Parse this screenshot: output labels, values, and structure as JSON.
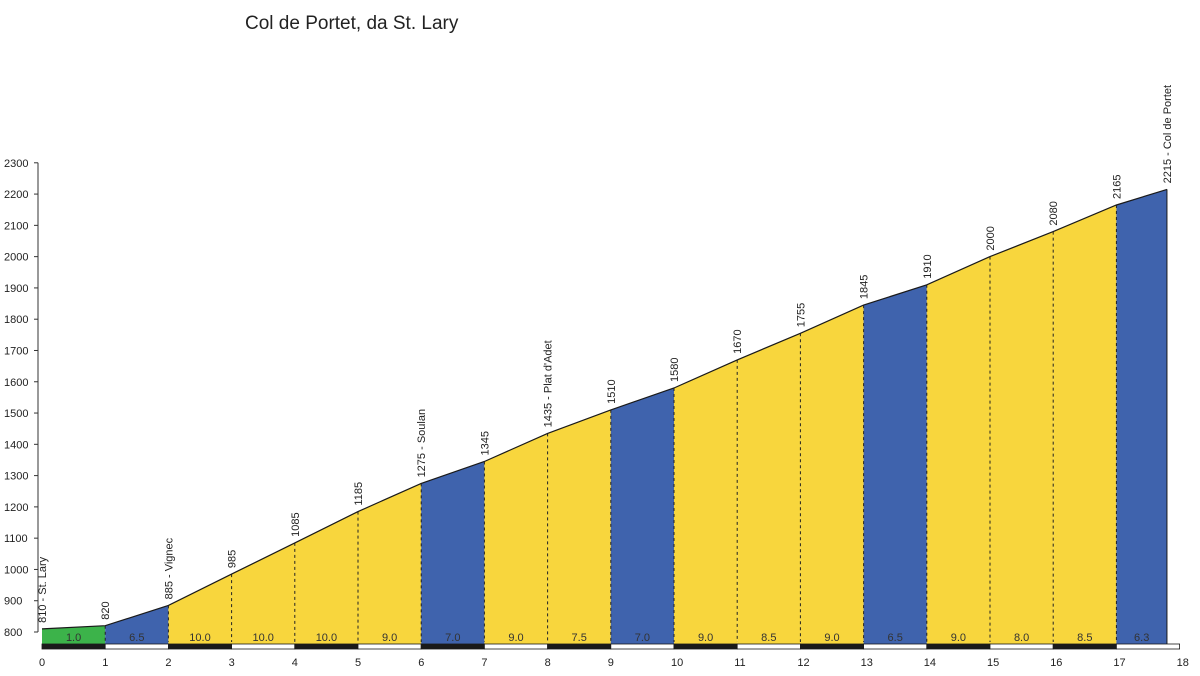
{
  "chart_data": {
    "type": "area",
    "title": "Col de Portet, da St. Lary",
    "xlim": [
      0,
      18
    ],
    "ylim": [
      800,
      2300
    ],
    "y_ticks": [
      "800",
      "900",
      "1000",
      "1100",
      "1200",
      "1300",
      "1400",
      "1500",
      "1600",
      "1700",
      "1800",
      "1900",
      "2000",
      "2100",
      "2200",
      "2300"
    ],
    "x_ticks": [
      "0",
      "1",
      "2",
      "3",
      "4",
      "5",
      "6",
      "7",
      "8",
      "9",
      "10",
      "11",
      "12",
      "13",
      "14",
      "15",
      "16",
      "17",
      "18"
    ],
    "profile": [
      {
        "x": 0,
        "y": 810
      },
      {
        "x": 1,
        "y": 820
      },
      {
        "x": 2,
        "y": 885
      },
      {
        "x": 3,
        "y": 985
      },
      {
        "x": 4,
        "y": 1085
      },
      {
        "x": 5,
        "y": 1185
      },
      {
        "x": 6,
        "y": 1275
      },
      {
        "x": 7,
        "y": 1345
      },
      {
        "x": 8,
        "y": 1435
      },
      {
        "x": 9,
        "y": 1510
      },
      {
        "x": 10,
        "y": 1580
      },
      {
        "x": 11,
        "y": 1670
      },
      {
        "x": 12,
        "y": 1755
      },
      {
        "x": 13,
        "y": 1845
      },
      {
        "x": 14,
        "y": 1910
      },
      {
        "x": 15,
        "y": 2000
      },
      {
        "x": 16,
        "y": 2080
      },
      {
        "x": 17,
        "y": 2165
      },
      {
        "x": 17.8,
        "y": 2215
      }
    ],
    "elevation_labels": [
      {
        "x": 0,
        "y": 810,
        "text": "810 - St. Lary"
      },
      {
        "x": 1,
        "y": 820,
        "text": "820"
      },
      {
        "x": 2,
        "y": 885,
        "text": "885 - Vignec"
      },
      {
        "x": 3,
        "y": 985,
        "text": "985"
      },
      {
        "x": 4,
        "y": 1085,
        "text": "1085"
      },
      {
        "x": 5,
        "y": 1185,
        "text": "1185"
      },
      {
        "x": 6,
        "y": 1275,
        "text": "1275 - Soulan"
      },
      {
        "x": 7,
        "y": 1345,
        "text": "1345"
      },
      {
        "x": 8,
        "y": 1435,
        "text": "1435 - Plat d'Adet"
      },
      {
        "x": 9,
        "y": 1510,
        "text": "1510"
      },
      {
        "x": 10,
        "y": 1580,
        "text": "1580"
      },
      {
        "x": 11,
        "y": 1670,
        "text": "1670"
      },
      {
        "x": 12,
        "y": 1755,
        "text": "1755"
      },
      {
        "x": 13,
        "y": 1845,
        "text": "1845"
      },
      {
        "x": 14,
        "y": 1910,
        "text": "1910"
      },
      {
        "x": 15,
        "y": 2000,
        "text": "2000"
      },
      {
        "x": 16,
        "y": 2080,
        "text": "2080"
      },
      {
        "x": 17,
        "y": 2165,
        "text": "2165"
      },
      {
        "x": 17.8,
        "y": 2215,
        "text": "2215 - Col de Portet"
      }
    ],
    "segments": [
      {
        "x0": 0,
        "x1": 1,
        "gradient": "1.0",
        "color": "#3cb34a"
      },
      {
        "x0": 1,
        "x1": 2,
        "gradient": "6.5",
        "color": "#3f63ad"
      },
      {
        "x0": 2,
        "x1": 3,
        "gradient": "10.0",
        "color": "#f8d63d"
      },
      {
        "x0": 3,
        "x1": 4,
        "gradient": "10.0",
        "color": "#f8d63d"
      },
      {
        "x0": 4,
        "x1": 5,
        "gradient": "10.0",
        "color": "#f8d63d"
      },
      {
        "x0": 5,
        "x1": 6,
        "gradient": "9.0",
        "color": "#f8d63d"
      },
      {
        "x0": 6,
        "x1": 7,
        "gradient": "7.0",
        "color": "#3f63ad"
      },
      {
        "x0": 7,
        "x1": 8,
        "gradient": "9.0",
        "color": "#f8d63d"
      },
      {
        "x0": 8,
        "x1": 9,
        "gradient": "7.5",
        "color": "#f8d63d"
      },
      {
        "x0": 9,
        "x1": 10,
        "gradient": "7.0",
        "color": "#3f63ad"
      },
      {
        "x0": 10,
        "x1": 11,
        "gradient": "9.0",
        "color": "#f8d63d"
      },
      {
        "x0": 11,
        "x1": 12,
        "gradient": "8.5",
        "color": "#f8d63d"
      },
      {
        "x0": 12,
        "x1": 13,
        "gradient": "9.0",
        "color": "#f8d63d"
      },
      {
        "x0": 13,
        "x1": 14,
        "gradient": "6.5",
        "color": "#3f63ad"
      },
      {
        "x0": 14,
        "x1": 15,
        "gradient": "9.0",
        "color": "#f8d63d"
      },
      {
        "x0": 15,
        "x1": 16,
        "gradient": "8.0",
        "color": "#f8d63d"
      },
      {
        "x0": 16,
        "x1": 17,
        "gradient": "8.5",
        "color": "#f8d63d"
      },
      {
        "x0": 17,
        "x1": 17.8,
        "gradient": "6.3",
        "color": "#3f63ad"
      }
    ],
    "colors": {
      "easy": "#3cb34a",
      "moderate": "#3f63ad",
      "hard": "#f8d63d"
    },
    "grid": false
  }
}
